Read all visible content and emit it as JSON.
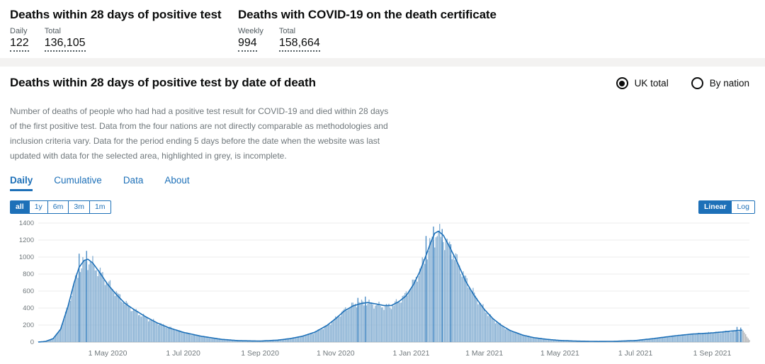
{
  "colors": {
    "govuk_blue": "#1d70b8",
    "page_background": "#f3f2f1",
    "card_background": "#ffffff",
    "text_dark": "#0b0c0c",
    "text_grey": "#6f777b",
    "label_grey": "#505a5f"
  },
  "summary": {
    "left": {
      "title": "Deaths within 28 days of positive test",
      "metrics": [
        {
          "label": "Daily",
          "value": "122"
        },
        {
          "label": "Total",
          "value": "136,105"
        }
      ]
    },
    "right": {
      "title": "Deaths with COVID-19 on the death certificate",
      "metrics": [
        {
          "label": "Weekly",
          "value": "994"
        },
        {
          "label": "Total",
          "value": "158,664"
        }
      ]
    }
  },
  "card": {
    "title": "Deaths within 28 days of positive test by date of death",
    "radios": [
      {
        "label": "UK total",
        "selected": true
      },
      {
        "label": "By nation",
        "selected": false
      }
    ],
    "description": "Number of deaths of people who had had a positive test result for COVID-19 and died within 28 days of the first positive test. Data from the four nations are not directly comparable as methodologies and inclusion criteria vary. Data for the period ending 5 days before the date when the website was last updated with data for the selected area, highlighted in grey, is incomplete.",
    "tabs": [
      {
        "label": "Daily",
        "active": true
      },
      {
        "label": "Cumulative",
        "active": false
      },
      {
        "label": "Data",
        "active": false
      },
      {
        "label": "About",
        "active": false
      }
    ],
    "range_buttons": [
      {
        "label": "all",
        "active": true
      },
      {
        "label": "1y",
        "active": false
      },
      {
        "label": "6m",
        "active": false
      },
      {
        "label": "3m",
        "active": false
      },
      {
        "label": "1m",
        "active": false
      }
    ],
    "scale_buttons": [
      {
        "label": "Linear",
        "active": true
      },
      {
        "label": "Log",
        "active": false
      }
    ]
  },
  "chart_data": {
    "type": "bar",
    "title": "Deaths within 28 days of positive test by date of death",
    "xlabel": "",
    "ylabel": "",
    "ylim": [
      0,
      1400
    ],
    "yticks": [
      0,
      200,
      400,
      600,
      800,
      1000,
      1200,
      1400
    ],
    "xticks": [
      {
        "date": "2020-05-01",
        "label": "1 May 2020"
      },
      {
        "date": "2020-07-01",
        "label": "1 Jul 2020"
      },
      {
        "date": "2020-09-01",
        "label": "1 Sep 2020"
      },
      {
        "date": "2020-11-01",
        "label": "1 Nov 2020"
      },
      {
        "date": "2021-01-01",
        "label": "1 Jan 2021"
      },
      {
        "date": "2021-03-01",
        "label": "1 Mar 2021"
      },
      {
        "date": "2021-05-01",
        "label": "1 May 2021"
      },
      {
        "date": "2021-07-01",
        "label": "1 Jul 2021"
      },
      {
        "date": "2021-09-01",
        "label": "1 Sep 2021"
      }
    ],
    "date_range": [
      "2020-03-06",
      "2021-10-01"
    ],
    "incomplete_from": "2021-09-26",
    "grid": true,
    "legend": "none",
    "colors": {
      "bar": "#84aed2",
      "line": "#1d70b8",
      "incomplete": "#b1b4b6",
      "grid": "#ededed",
      "baseline": "#b1b4b6",
      "axis_text": "#6f777b"
    },
    "keypoints": [
      [
        "2020-03-06",
        0
      ],
      [
        "2020-03-12",
        8
      ],
      [
        "2020-03-18",
        40
      ],
      [
        "2020-03-24",
        150
      ],
      [
        "2020-03-30",
        420
      ],
      [
        "2020-04-04",
        700
      ],
      [
        "2020-04-08",
        880
      ],
      [
        "2020-04-12",
        960
      ],
      [
        "2020-04-15",
        975
      ],
      [
        "2020-04-19",
        930
      ],
      [
        "2020-04-24",
        830
      ],
      [
        "2020-05-01",
        680
      ],
      [
        "2020-05-08",
        560
      ],
      [
        "2020-05-15",
        455
      ],
      [
        "2020-05-22",
        385
      ],
      [
        "2020-06-01",
        295
      ],
      [
        "2020-06-10",
        225
      ],
      [
        "2020-06-20",
        165
      ],
      [
        "2020-07-01",
        115
      ],
      [
        "2020-07-15",
        70
      ],
      [
        "2020-08-01",
        32
      ],
      [
        "2020-08-15",
        16
      ],
      [
        "2020-09-01",
        12
      ],
      [
        "2020-09-15",
        22
      ],
      [
        "2020-09-25",
        40
      ],
      [
        "2020-10-05",
        68
      ],
      [
        "2020-10-15",
        115
      ],
      [
        "2020-10-25",
        195
      ],
      [
        "2020-11-01",
        275
      ],
      [
        "2020-11-08",
        365
      ],
      [
        "2020-11-15",
        425
      ],
      [
        "2020-11-22",
        455
      ],
      [
        "2020-11-27",
        465
      ],
      [
        "2020-12-03",
        450
      ],
      [
        "2020-12-10",
        430
      ],
      [
        "2020-12-16",
        430
      ],
      [
        "2020-12-22",
        475
      ],
      [
        "2020-12-28",
        545
      ],
      [
        "2021-01-03",
        680
      ],
      [
        "2021-01-08",
        830
      ],
      [
        "2021-01-13",
        1020
      ],
      [
        "2021-01-17",
        1180
      ],
      [
        "2021-01-20",
        1280
      ],
      [
        "2021-01-23",
        1305
      ],
      [
        "2021-01-27",
        1255
      ],
      [
        "2021-02-01",
        1120
      ],
      [
        "2021-02-07",
        945
      ],
      [
        "2021-02-14",
        715
      ],
      [
        "2021-02-21",
        545
      ],
      [
        "2021-03-01",
        385
      ],
      [
        "2021-03-08",
        275
      ],
      [
        "2021-03-15",
        195
      ],
      [
        "2021-03-22",
        135
      ],
      [
        "2021-04-01",
        82
      ],
      [
        "2021-04-10",
        52
      ],
      [
        "2021-04-20",
        33
      ],
      [
        "2021-05-01",
        19
      ],
      [
        "2021-05-15",
        11
      ],
      [
        "2021-06-01",
        7
      ],
      [
        "2021-06-15",
        9
      ],
      [
        "2021-07-01",
        18
      ],
      [
        "2021-07-15",
        40
      ],
      [
        "2021-08-01",
        72
      ],
      [
        "2021-08-15",
        93
      ],
      [
        "2021-09-01",
        108
      ],
      [
        "2021-09-10",
        120
      ],
      [
        "2021-09-18",
        132
      ],
      [
        "2021-09-25",
        140
      ],
      [
        "2021-09-27",
        115
      ],
      [
        "2021-09-29",
        70
      ],
      [
        "2021-10-01",
        25
      ]
    ],
    "spikes": [
      [
        "2020-04-08",
        1040
      ],
      [
        "2020-04-14",
        1073
      ],
      [
        "2020-11-19",
        520
      ],
      [
        "2020-11-25",
        535
      ],
      [
        "2021-01-13",
        1248
      ],
      [
        "2021-01-19",
        1359
      ],
      [
        "2021-01-26",
        1330
      ],
      [
        "2021-02-02",
        1150
      ],
      [
        "2021-09-21",
        178
      ],
      [
        "2021-09-24",
        170
      ]
    ]
  }
}
